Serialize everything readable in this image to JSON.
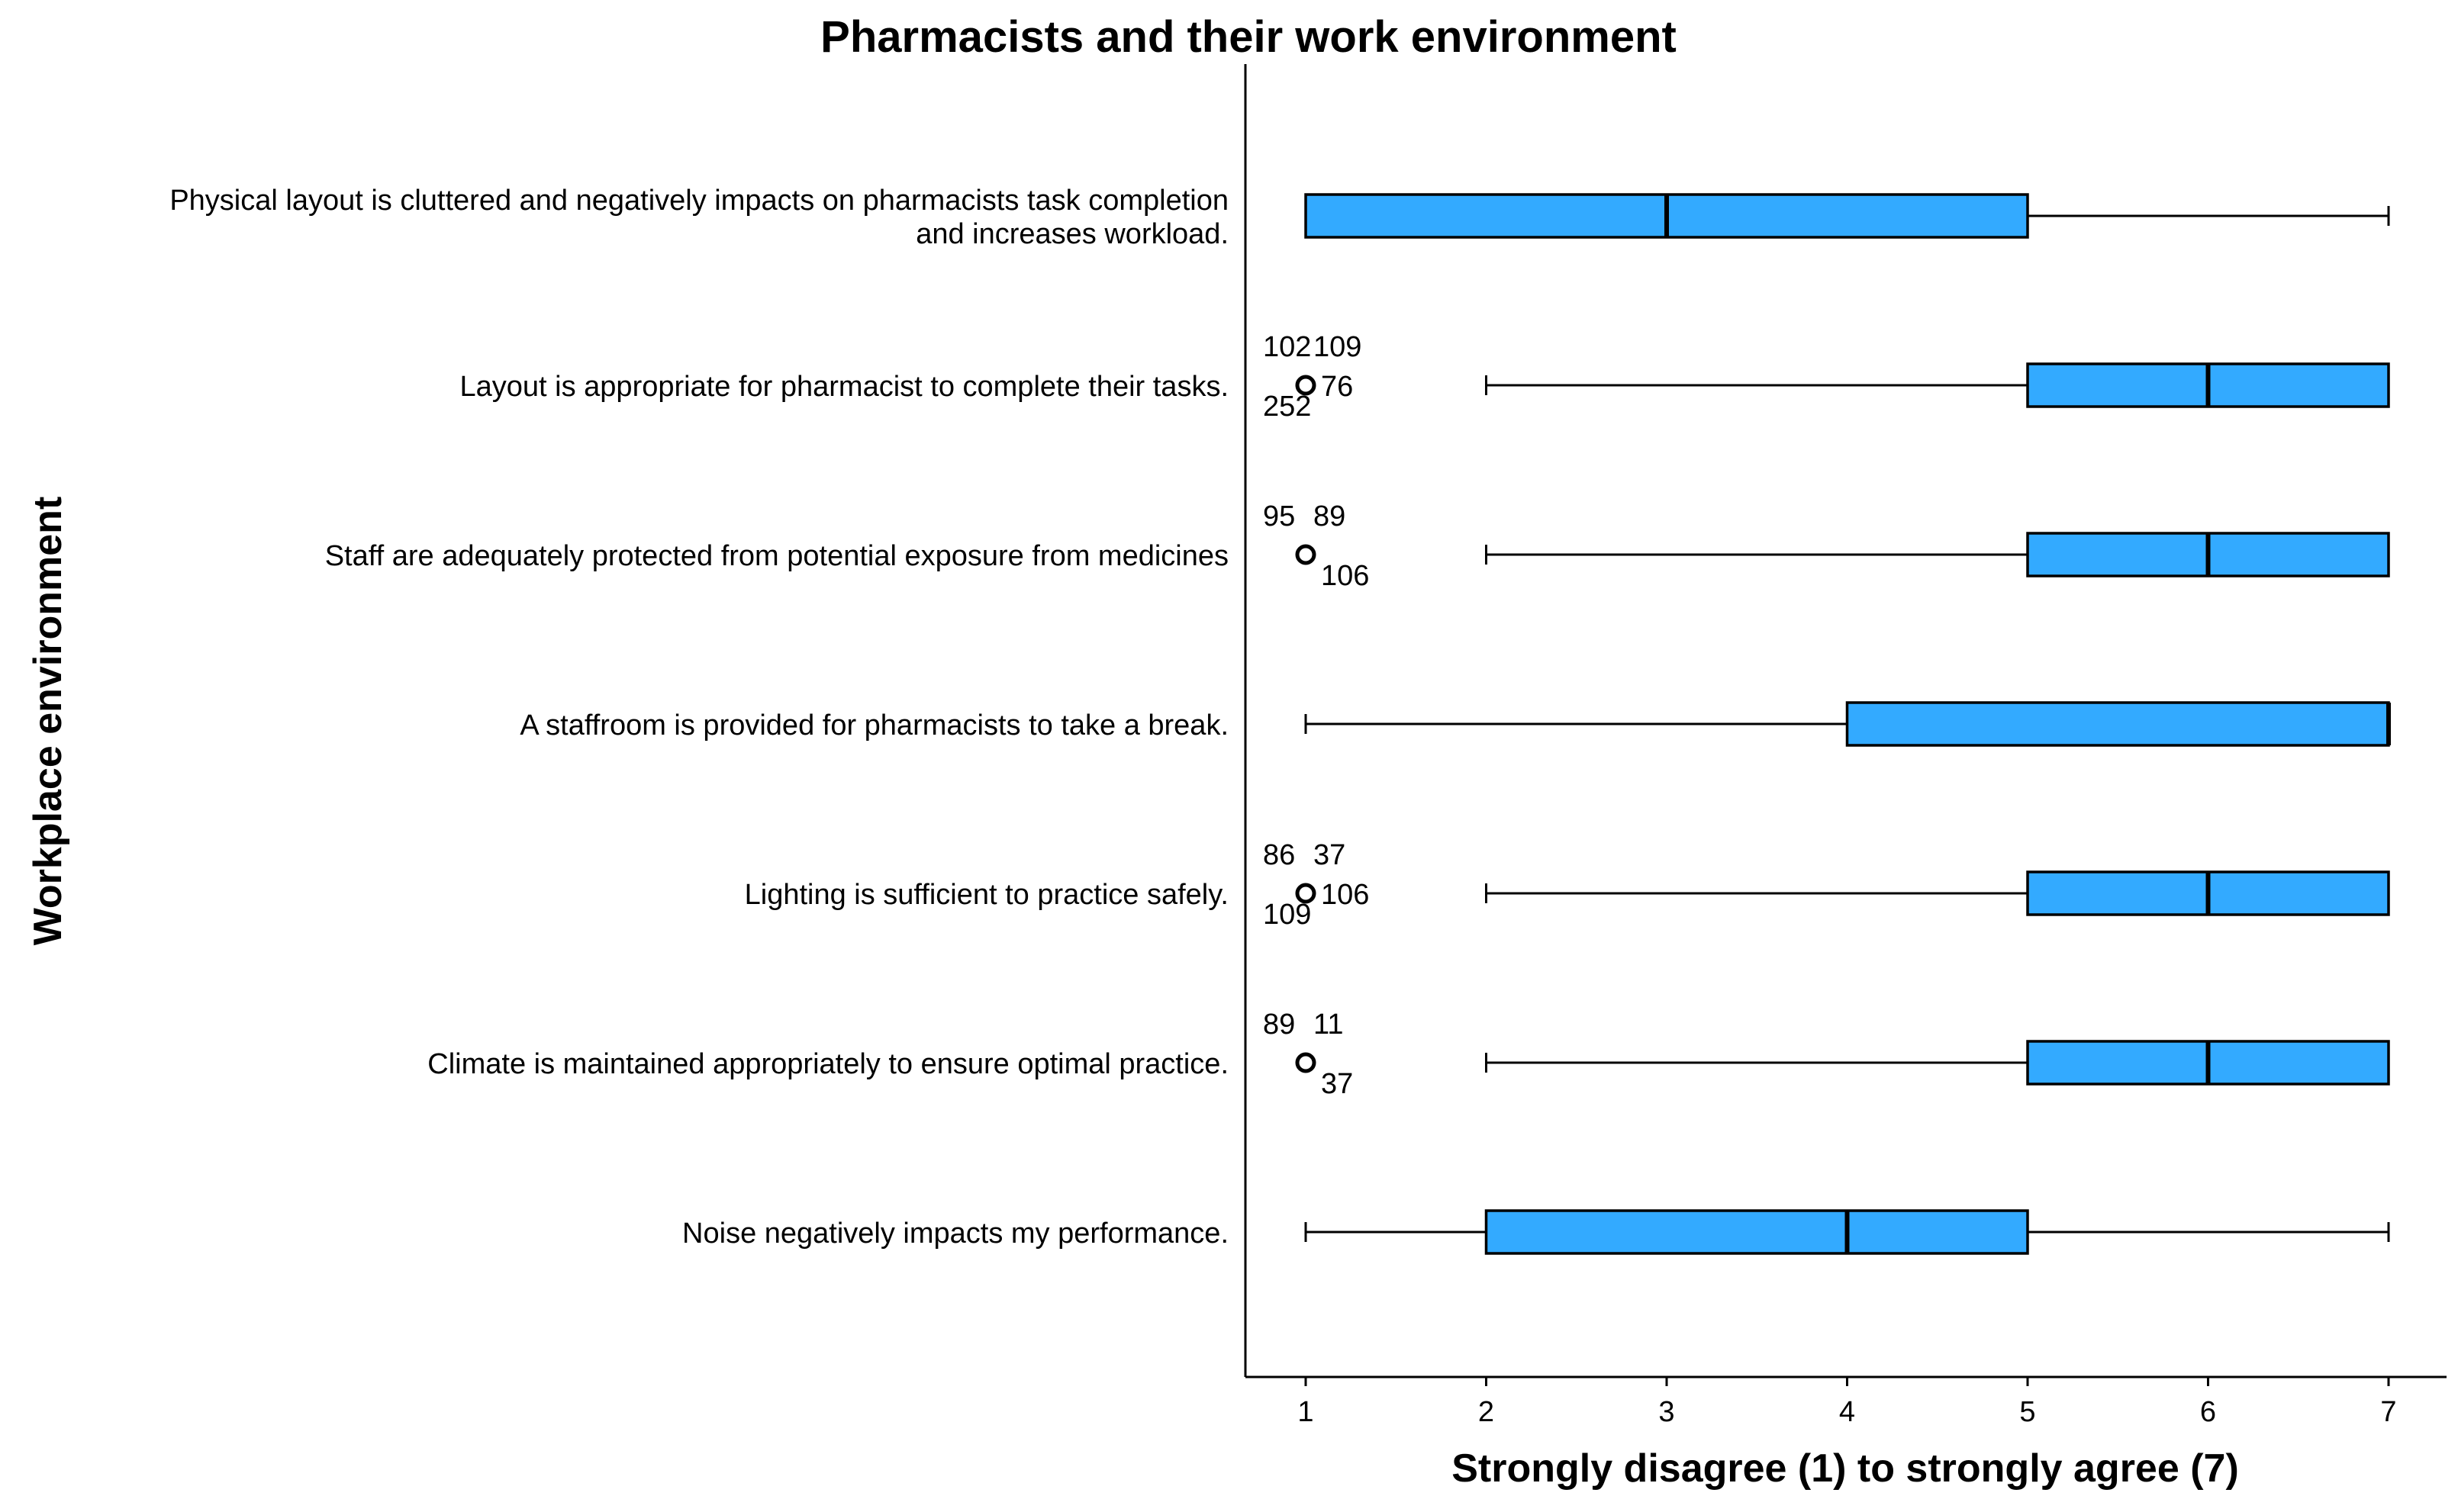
{
  "chart_data": {
    "type": "boxplot",
    "orientation": "horizontal",
    "title": "Pharmacists and their work environment",
    "xlabel": "Strongly disagree (1) to strongly agree (7)",
    "ylabel": "Workplace environment",
    "xlim": [
      0.7,
      7.3
    ],
    "xticks": [
      1,
      2,
      3,
      4,
      5,
      6,
      7
    ],
    "box_color": "#33aaff",
    "grid": false,
    "categories": [
      {
        "label_lines": [
          "Physical layout is cluttered and negatively impacts on pharmacists task completion",
          "and increases workload."
        ],
        "whisker_low": 1,
        "q1": 1,
        "median": 3,
        "q3": 5,
        "whisker_high": 7,
        "outliers": []
      },
      {
        "label_lines": [
          "Layout is appropriate for pharmacist to complete their tasks."
        ],
        "whisker_low": 2,
        "q1": 5,
        "median": 6,
        "q3": 7,
        "whisker_high": 7,
        "outliers": [
          {
            "value": 1,
            "ids": [
              "102",
              "109",
              "252",
              "76"
            ]
          }
        ]
      },
      {
        "label_lines": [
          "Staff are adequately protected from potential exposure from medicines"
        ],
        "whisker_low": 2,
        "q1": 5,
        "median": 6,
        "q3": 7,
        "whisker_high": 7,
        "outliers": [
          {
            "value": 1,
            "ids": [
              "95",
              "89",
              "106"
            ]
          }
        ]
      },
      {
        "label_lines": [
          "A staffroom is provided for pharmacists to take a break."
        ],
        "whisker_low": 1,
        "q1": 4,
        "median": 7,
        "q3": 7,
        "whisker_high": 7,
        "outliers": []
      },
      {
        "label_lines": [
          "Lighting is sufficient to practice safely."
        ],
        "whisker_low": 2,
        "q1": 5,
        "median": 6,
        "q3": 7,
        "whisker_high": 7,
        "outliers": [
          {
            "value": 1,
            "ids": [
              "86",
              "37",
              "109",
              "106"
            ]
          }
        ]
      },
      {
        "label_lines": [
          "Climate is maintained appropriately to ensure optimal practice."
        ],
        "whisker_low": 2,
        "q1": 5,
        "median": 6,
        "q3": 7,
        "whisker_high": 7,
        "outliers": [
          {
            "value": 1,
            "ids": [
              "89",
              "11",
              "37"
            ]
          }
        ]
      },
      {
        "label_lines": [
          "Noise negatively impacts my performance."
        ],
        "whisker_low": 1,
        "q1": 2,
        "median": 4,
        "q3": 5,
        "whisker_high": 7,
        "outliers": []
      }
    ]
  }
}
